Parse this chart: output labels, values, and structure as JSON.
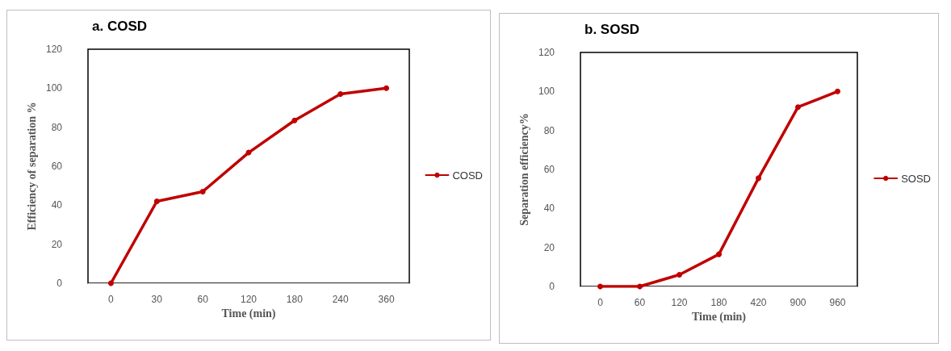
{
  "chart_data": [
    {
      "type": "line",
      "title": "a. COSD",
      "xlabel": "Time (min)",
      "ylabel": "Efficiency of separation %",
      "categories": [
        "0",
        "30",
        "60",
        "120",
        "180",
        "240",
        "360"
      ],
      "series": [
        {
          "name": "COSD",
          "color": "#c00000",
          "values": [
            0,
            42,
            47,
            67,
            83.5,
            97,
            100
          ]
        }
      ],
      "ylim": [
        0,
        120
      ],
      "yticks": [
        0,
        20,
        40,
        60,
        80,
        100,
        120
      ],
      "grid": false,
      "legend": "right",
      "marker": "circle",
      "line_style": "solid"
    },
    {
      "type": "line",
      "title": "b. SOSD",
      "xlabel": "Time (min)",
      "ylabel": "Separation efficiency%",
      "categories": [
        "0",
        "60",
        "120",
        "180",
        "420",
        "900",
        "960"
      ],
      "series": [
        {
          "name": "SOSD",
          "color": "#c00000",
          "values": [
            0,
            0,
            6,
            16.5,
            55.5,
            92,
            100
          ]
        }
      ],
      "ylim": [
        0,
        120
      ],
      "yticks": [
        0,
        20,
        40,
        60,
        80,
        100,
        120
      ],
      "grid": false,
      "legend": "right",
      "marker": "circle",
      "line_style": "solid"
    }
  ]
}
